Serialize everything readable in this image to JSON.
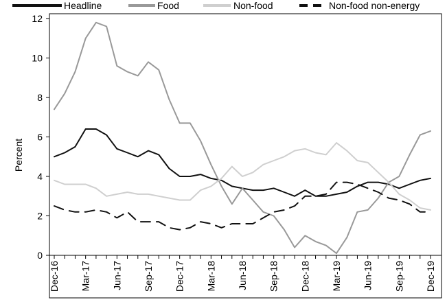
{
  "chart_data": {
    "type": "line",
    "ylabel": "Percent",
    "xlabel": "",
    "ylim": [
      0,
      12
    ],
    "yticks": [
      0,
      2,
      4,
      6,
      8,
      10,
      12
    ],
    "x": [
      "Dec-16",
      "Jan-17",
      "Feb-17",
      "Mar-17",
      "Apr-17",
      "May-17",
      "Jun-17",
      "Jul-17",
      "Aug-17",
      "Sep-17",
      "Oct-17",
      "Nov-17",
      "Dec-17",
      "Jan-18",
      "Feb-18",
      "Mar-18",
      "Apr-18",
      "May-18",
      "Jun-18",
      "Jul-18",
      "Aug-18",
      "Sep-18",
      "Oct-18",
      "Nov-18",
      "Dec-18",
      "Jan-19",
      "Feb-19",
      "Mar-19",
      "Apr-19",
      "May-19",
      "Jun-19",
      "Jul-19",
      "Aug-19",
      "Sep-19",
      "Oct-19",
      "Nov-19",
      "Dec-19"
    ],
    "xtick_labels": [
      "Dec-16",
      "Mar-17",
      "Jun-17",
      "Sep-17",
      "Dec-17",
      "Mar-18",
      "Jun-18",
      "Sep-18",
      "Dec-18",
      "Mar-19",
      "Jun-19",
      "Sep-19",
      "Dec-19"
    ],
    "grid": false,
    "legend_position": "top",
    "series": [
      {
        "name": "Headline",
        "color": "#111111",
        "dash": "solid",
        "values": [
          5.0,
          5.2,
          5.5,
          6.4,
          6.4,
          6.1,
          5.4,
          5.2,
          5.0,
          5.3,
          5.1,
          4.4,
          4.0,
          4.0,
          4.1,
          3.9,
          3.8,
          3.5,
          3.4,
          3.3,
          3.3,
          3.4,
          3.2,
          3.0,
          3.3,
          3.0,
          3.0,
          3.1,
          3.2,
          3.5,
          3.7,
          3.7,
          3.6,
          3.4,
          3.6,
          3.8,
          3.9
        ]
      },
      {
        "name": "Food",
        "color": "#999999",
        "dash": "solid",
        "values": [
          7.4,
          8.2,
          9.3,
          11.0,
          11.8,
          11.6,
          9.6,
          9.3,
          9.1,
          9.8,
          9.4,
          7.9,
          6.7,
          6.7,
          5.8,
          4.6,
          3.5,
          2.6,
          3.4,
          2.8,
          2.2,
          2.0,
          1.3,
          0.4,
          1.0,
          0.7,
          0.5,
          0.1,
          0.9,
          2.2,
          2.3,
          2.9,
          3.7,
          4.0,
          5.1,
          6.1,
          6.3
        ]
      },
      {
        "name": "Non-food",
        "color": "#cfcfcf",
        "dash": "solid",
        "values": [
          3.8,
          3.6,
          3.6,
          3.6,
          3.4,
          3.0,
          3.1,
          3.2,
          3.1,
          3.1,
          3.0,
          2.9,
          2.8,
          2.8,
          3.3,
          3.5,
          3.9,
          4.5,
          4.0,
          4.2,
          4.6,
          4.8,
          5.0,
          5.3,
          5.4,
          5.2,
          5.1,
          5.7,
          5.3,
          4.8,
          4.7,
          4.2,
          3.7,
          3.1,
          2.8,
          2.4,
          2.3
        ]
      },
      {
        "name": "Non-food non-energy",
        "color": "#111111",
        "dash": "dashed",
        "values": [
          2.5,
          2.3,
          2.2,
          2.2,
          2.3,
          2.2,
          1.9,
          2.2,
          1.7,
          1.7,
          1.7,
          1.4,
          1.3,
          1.4,
          1.7,
          1.6,
          1.4,
          1.6,
          1.6,
          1.6,
          1.9,
          2.2,
          2.3,
          2.5,
          3.0,
          3.0,
          3.1,
          3.7,
          3.7,
          3.6,
          3.4,
          3.2,
          2.9,
          2.8,
          2.6,
          2.2,
          2.2
        ]
      }
    ]
  }
}
